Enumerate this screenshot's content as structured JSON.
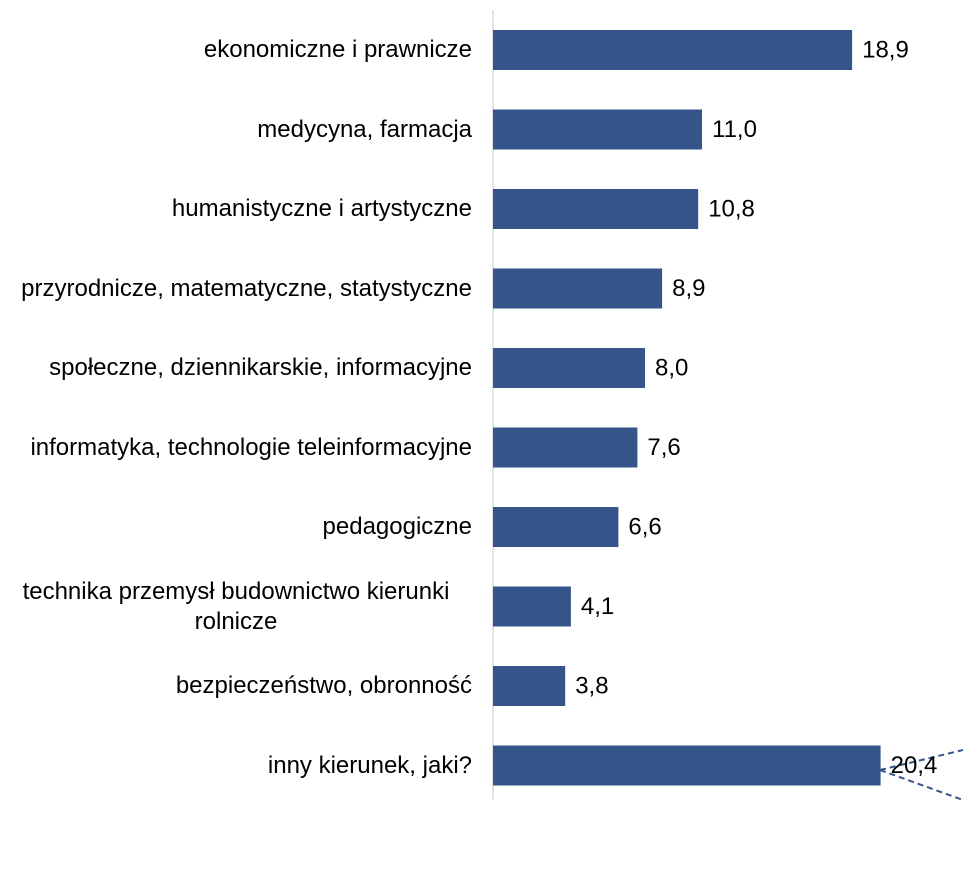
{
  "chart_data": {
    "type": "bar",
    "orientation": "horizontal",
    "categories": [
      "ekonomiczne i prawnicze",
      "medycyna, farmacja",
      "humanistyczne i artystyczne",
      "przyrodnicze, matematyczne, statystyczne",
      "społeczne, dziennikarskie, informacyjne",
      "informatyka, technologie teleinformacyjne",
      "pedagogiczne",
      "technika przemysł budownictwo kierunki rolnicze",
      "bezpieczeństwo, obronność",
      "inny kierunek, jaki?"
    ],
    "values": [
      18.9,
      11.0,
      10.8,
      8.9,
      8.0,
      7.6,
      6.6,
      4.1,
      3.8,
      20.4
    ],
    "value_labels": [
      "18,9",
      "11,0",
      "10,8",
      "8,9",
      "8,0",
      "7,6",
      "6,6",
      "4,1",
      "3,8",
      "20,4"
    ],
    "color": "#35558a",
    "xlim": [
      0,
      24.5
    ]
  }
}
